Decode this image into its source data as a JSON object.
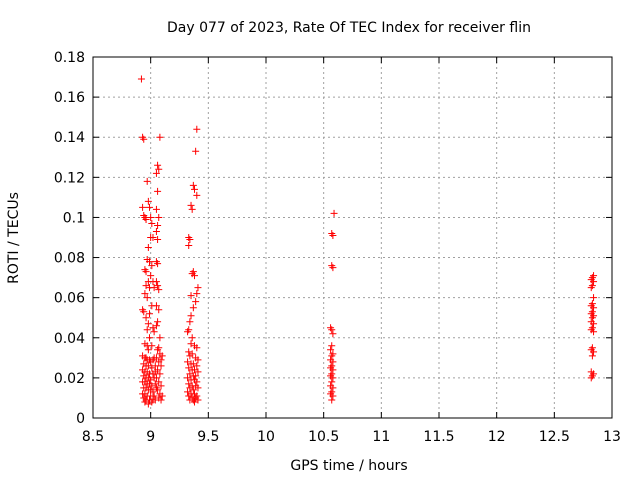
{
  "chart_data": {
    "type": "scatter",
    "title": "Day 077 of 2023, Rate Of TEC Index for receiver flin",
    "xlabel": "GPS time / hours",
    "ylabel": "ROTI / TECUs",
    "xlim": [
      8.5,
      13
    ],
    "ylim": [
      0,
      0.18
    ],
    "xticks": [
      "8.5",
      "9",
      "9.5",
      "10",
      "10.5",
      "11",
      "11.5",
      "12",
      "12.5",
      "13"
    ],
    "yticks": [
      "0",
      "0.02",
      "0.04",
      "0.06",
      "0.08",
      "0.1",
      "0.12",
      "0.14",
      "0.16",
      "0.18"
    ],
    "grid": true,
    "marker": "+",
    "color": "#ff0000",
    "series": [
      {
        "name": "ROTI",
        "points": [
          [
            8.92,
            0.169
          ],
          [
            8.93,
            0.14
          ],
          [
            8.94,
            0.139
          ],
          [
            8.93,
            0.105
          ],
          [
            8.94,
            0.101
          ],
          [
            8.95,
            0.1
          ],
          [
            8.96,
            0.099
          ],
          [
            8.97,
            0.118
          ],
          [
            8.98,
            0.108
          ],
          [
            8.99,
            0.105
          ],
          [
            9.0,
            0.1
          ],
          [
            9.01,
            0.097
          ],
          [
            9.0,
            0.09
          ],
          [
            9.02,
            0.09
          ],
          [
            8.98,
            0.085
          ],
          [
            8.97,
            0.079
          ],
          [
            8.99,
            0.078
          ],
          [
            9.01,
            0.076
          ],
          [
            8.95,
            0.074
          ],
          [
            8.96,
            0.073
          ],
          [
            9.0,
            0.071
          ],
          [
            8.98,
            0.068
          ],
          [
            9.02,
            0.068
          ],
          [
            8.96,
            0.066
          ],
          [
            8.99,
            0.065
          ],
          [
            9.03,
            0.065
          ],
          [
            8.95,
            0.062
          ],
          [
            8.97,
            0.06
          ],
          [
            9.01,
            0.056
          ],
          [
            8.93,
            0.054
          ],
          [
            8.94,
            0.053
          ],
          [
            8.99,
            0.052
          ],
          [
            8.96,
            0.05
          ],
          [
            8.98,
            0.047
          ],
          [
            9.02,
            0.045
          ],
          [
            8.97,
            0.044
          ],
          [
            9.03,
            0.043
          ],
          [
            8.99,
            0.04
          ],
          [
            8.95,
            0.037
          ],
          [
            8.97,
            0.036
          ],
          [
            9.01,
            0.036
          ],
          [
            8.98,
            0.034
          ],
          [
            8.93,
            0.031
          ],
          [
            8.95,
            0.03
          ],
          [
            8.96,
            0.03
          ],
          [
            8.97,
            0.029
          ],
          [
            8.99,
            0.029
          ],
          [
            9.0,
            0.028
          ],
          [
            9.02,
            0.029
          ],
          [
            9.03,
            0.03
          ],
          [
            8.94,
            0.027
          ],
          [
            8.96,
            0.026
          ],
          [
            8.98,
            0.026
          ],
          [
            9.01,
            0.025
          ],
          [
            9.04,
            0.026
          ],
          [
            8.93,
            0.024
          ],
          [
            8.95,
            0.023
          ],
          [
            8.97,
            0.023
          ],
          [
            8.99,
            0.022
          ],
          [
            9.02,
            0.022
          ],
          [
            9.04,
            0.023
          ],
          [
            8.94,
            0.021
          ],
          [
            8.96,
            0.02
          ],
          [
            8.98,
            0.02
          ],
          [
            9.0,
            0.019
          ],
          [
            9.03,
            0.02
          ],
          [
            8.93,
            0.018
          ],
          [
            8.95,
            0.018
          ],
          [
            8.97,
            0.017
          ],
          [
            8.99,
            0.017
          ],
          [
            9.01,
            0.016
          ],
          [
            9.04,
            0.017
          ],
          [
            8.94,
            0.015
          ],
          [
            8.96,
            0.015
          ],
          [
            8.98,
            0.014
          ],
          [
            9.0,
            0.014
          ],
          [
            9.02,
            0.013
          ],
          [
            9.05,
            0.015
          ],
          [
            8.93,
            0.012
          ],
          [
            8.95,
            0.012
          ],
          [
            8.97,
            0.011
          ],
          [
            9.0,
            0.011
          ],
          [
            9.03,
            0.011
          ],
          [
            8.94,
            0.01
          ],
          [
            8.96,
            0.009
          ],
          [
            8.99,
            0.009
          ],
          [
            9.02,
            0.009
          ],
          [
            8.95,
            0.008
          ],
          [
            8.98,
            0.007
          ],
          [
            9.01,
            0.008
          ],
          [
            9.04,
            0.009
          ],
          [
            9.06,
            0.126
          ],
          [
            9.07,
            0.124
          ],
          [
            9.05,
            0.122
          ],
          [
            9.06,
            0.113
          ],
          [
            9.05,
            0.104
          ],
          [
            9.07,
            0.1
          ],
          [
            9.06,
            0.096
          ],
          [
            9.05,
            0.093
          ],
          [
            9.06,
            0.089
          ],
          [
            9.05,
            0.078
          ],
          [
            9.06,
            0.077
          ],
          [
            9.05,
            0.068
          ],
          [
            9.06,
            0.066
          ],
          [
            9.07,
            0.064
          ],
          [
            9.05,
            0.056
          ],
          [
            9.07,
            0.054
          ],
          [
            9.06,
            0.048
          ],
          [
            9.05,
            0.046
          ],
          [
            9.08,
            0.04
          ],
          [
            9.07,
            0.035
          ],
          [
            9.06,
            0.034
          ],
          [
            9.08,
            0.032
          ],
          [
            9.05,
            0.03
          ],
          [
            9.07,
            0.028
          ],
          [
            9.09,
            0.026
          ],
          [
            9.06,
            0.024
          ],
          [
            9.08,
            0.022
          ],
          [
            9.05,
            0.02
          ],
          [
            9.07,
            0.018
          ],
          [
            9.09,
            0.016
          ],
          [
            9.06,
            0.014
          ],
          [
            9.08,
            0.012
          ],
          [
            9.1,
            0.011
          ],
          [
            9.07,
            0.01
          ],
          [
            9.09,
            0.009
          ],
          [
            9.08,
            0.14
          ],
          [
            9.1,
            0.031
          ],
          [
            9.09,
            0.029
          ],
          [
            9.4,
            0.144
          ],
          [
            9.39,
            0.133
          ],
          [
            9.37,
            0.116
          ],
          [
            9.38,
            0.114
          ],
          [
            9.4,
            0.111
          ],
          [
            9.35,
            0.106
          ],
          [
            9.36,
            0.104
          ],
          [
            9.33,
            0.09
          ],
          [
            9.34,
            0.089
          ],
          [
            9.33,
            0.086
          ],
          [
            9.37,
            0.073
          ],
          [
            9.36,
            0.072
          ],
          [
            9.38,
            0.071
          ],
          [
            9.41,
            0.065
          ],
          [
            9.4,
            0.062
          ],
          [
            9.35,
            0.061
          ],
          [
            9.39,
            0.058
          ],
          [
            9.37,
            0.055
          ],
          [
            9.35,
            0.051
          ],
          [
            9.34,
            0.048
          ],
          [
            9.33,
            0.044
          ],
          [
            9.32,
            0.043
          ],
          [
            9.36,
            0.04
          ],
          [
            9.35,
            0.037
          ],
          [
            9.38,
            0.036
          ],
          [
            9.4,
            0.035
          ],
          [
            9.33,
            0.033
          ],
          [
            9.36,
            0.032
          ],
          [
            9.34,
            0.031
          ],
          [
            9.39,
            0.03
          ],
          [
            9.41,
            0.029
          ],
          [
            9.32,
            0.028
          ],
          [
            9.35,
            0.027
          ],
          [
            9.37,
            0.027
          ],
          [
            9.4,
            0.026
          ],
          [
            9.33,
            0.025
          ],
          [
            9.36,
            0.024
          ],
          [
            9.38,
            0.024
          ],
          [
            9.41,
            0.023
          ],
          [
            9.34,
            0.022
          ],
          [
            9.37,
            0.021
          ],
          [
            9.39,
            0.021
          ],
          [
            9.32,
            0.02
          ],
          [
            9.35,
            0.019
          ],
          [
            9.38,
            0.019
          ],
          [
            9.4,
            0.018
          ],
          [
            9.33,
            0.017
          ],
          [
            9.36,
            0.016
          ],
          [
            9.39,
            0.016
          ],
          [
            9.34,
            0.015
          ],
          [
            9.37,
            0.014
          ],
          [
            9.41,
            0.015
          ],
          [
            9.32,
            0.013
          ],
          [
            9.35,
            0.012
          ],
          [
            9.38,
            0.012
          ],
          [
            9.4,
            0.011
          ],
          [
            9.33,
            0.011
          ],
          [
            9.36,
            0.01
          ],
          [
            9.39,
            0.01
          ],
          [
            9.34,
            0.009
          ],
          [
            9.37,
            0.009
          ],
          [
            9.41,
            0.009
          ],
          [
            9.38,
            0.008
          ],
          [
            10.59,
            0.102
          ],
          [
            10.57,
            0.092
          ],
          [
            10.58,
            0.091
          ],
          [
            10.57,
            0.076
          ],
          [
            10.58,
            0.075
          ],
          [
            10.56,
            0.045
          ],
          [
            10.57,
            0.044
          ],
          [
            10.58,
            0.042
          ],
          [
            10.57,
            0.036
          ],
          [
            10.56,
            0.034
          ],
          [
            10.58,
            0.032
          ],
          [
            10.57,
            0.031
          ],
          [
            10.56,
            0.029
          ],
          [
            10.58,
            0.028
          ],
          [
            10.57,
            0.026
          ],
          [
            10.56,
            0.025
          ],
          [
            10.58,
            0.024
          ],
          [
            10.57,
            0.022
          ],
          [
            10.56,
            0.021
          ],
          [
            10.58,
            0.02
          ],
          [
            10.57,
            0.018
          ],
          [
            10.56,
            0.016
          ],
          [
            10.58,
            0.015
          ],
          [
            10.57,
            0.013
          ],
          [
            10.56,
            0.012
          ],
          [
            10.58,
            0.011
          ],
          [
            10.57,
            0.009
          ],
          [
            12.84,
            0.071
          ],
          [
            12.83,
            0.07
          ],
          [
            12.82,
            0.069
          ],
          [
            12.84,
            0.068
          ],
          [
            12.83,
            0.066
          ],
          [
            12.82,
            0.065
          ],
          [
            12.84,
            0.06
          ],
          [
            12.83,
            0.057
          ],
          [
            12.82,
            0.056
          ],
          [
            12.84,
            0.055
          ],
          [
            12.83,
            0.053
          ],
          [
            12.82,
            0.052
          ],
          [
            12.84,
            0.051
          ],
          [
            12.83,
            0.05
          ],
          [
            12.82,
            0.048
          ],
          [
            12.84,
            0.047
          ],
          [
            12.83,
            0.045
          ],
          [
            12.82,
            0.044
          ],
          [
            12.84,
            0.043
          ],
          [
            12.83,
            0.035
          ],
          [
            12.82,
            0.034
          ],
          [
            12.84,
            0.033
          ],
          [
            12.83,
            0.031
          ],
          [
            12.82,
            0.023
          ],
          [
            12.84,
            0.022
          ],
          [
            12.83,
            0.021
          ],
          [
            12.82,
            0.02
          ]
        ]
      }
    ]
  }
}
